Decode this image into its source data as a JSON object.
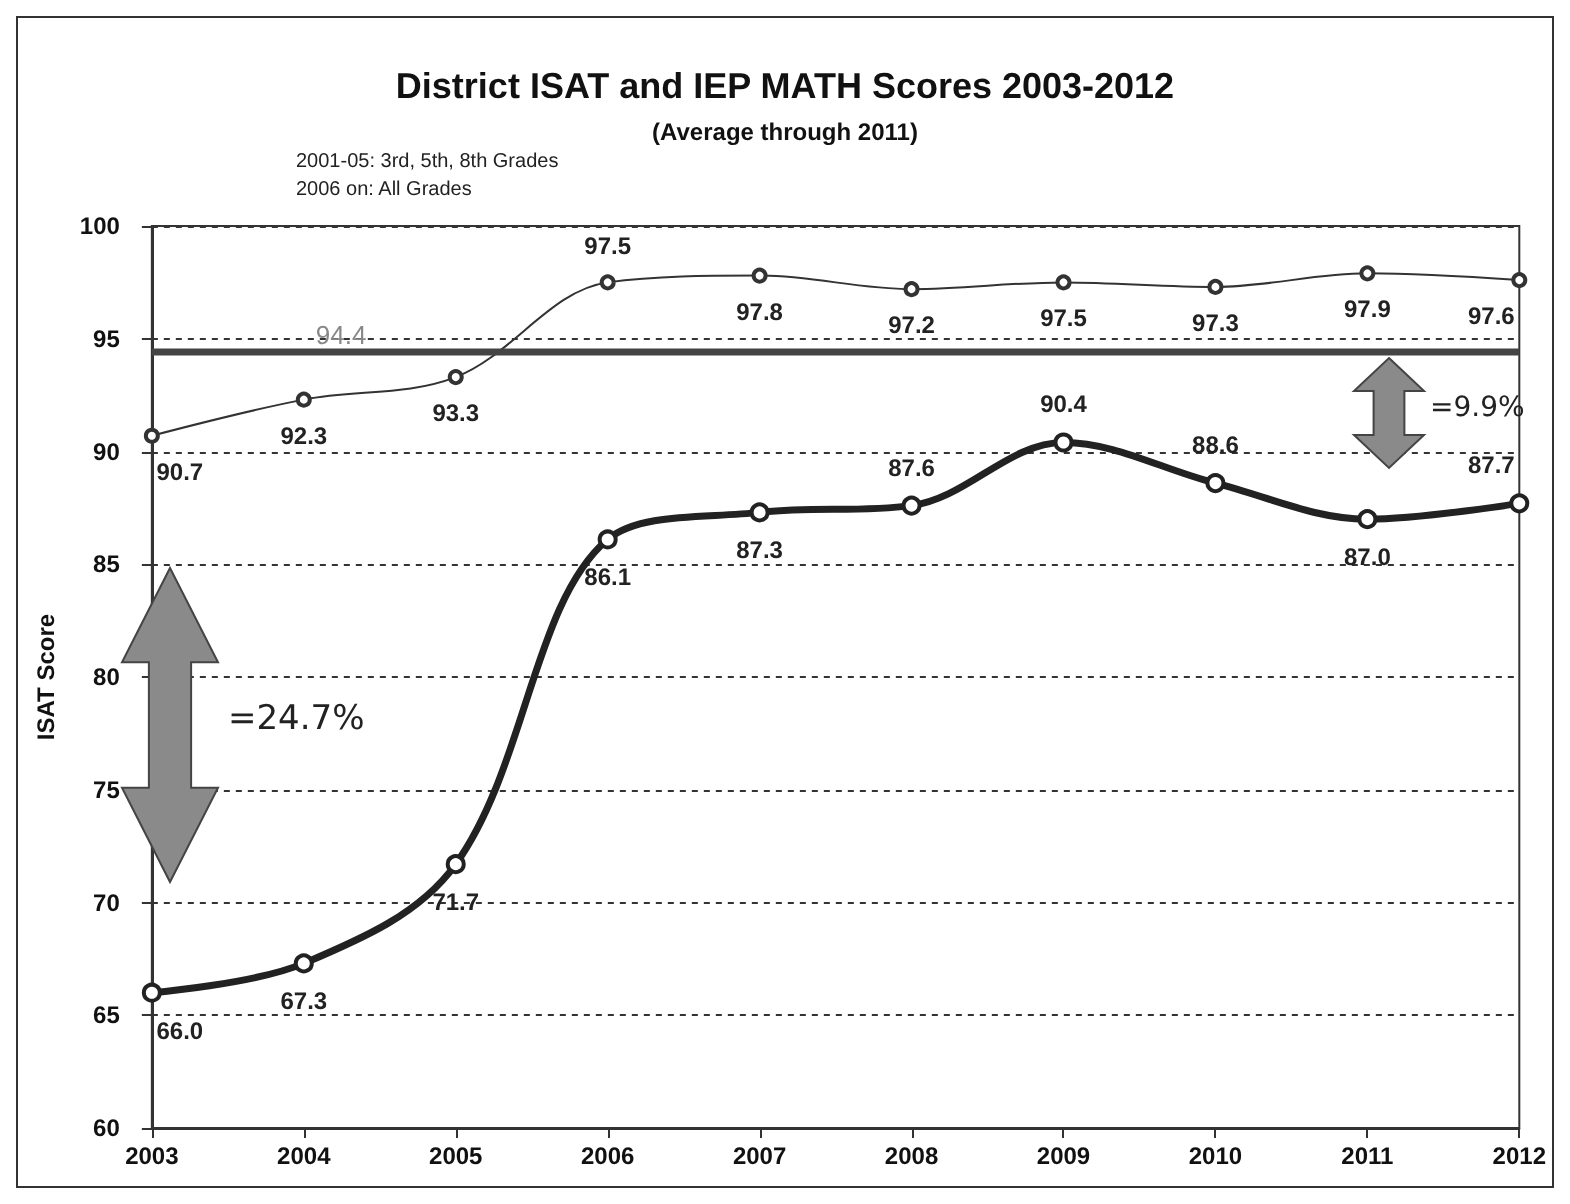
{
  "chart_data": {
    "type": "line",
    "title": "District ISAT and IEP MATH Scores 2003-2012",
    "subtitle": "(Average through 2011)",
    "ylabel": "ISAT Score",
    "annotations": [
      "2001-05: 3rd, 5th, 8th Grades",
      "2006 on: All Grades",
      "=24.7%",
      "=9.9%"
    ],
    "x": [
      2003,
      2004,
      2005,
      2006,
      2007,
      2008,
      2009,
      2010,
      2011,
      2012
    ],
    "series": [
      {
        "color": "#333333",
        "values": [
          90.7,
          92.3,
          93.3,
          97.5,
          97.8,
          97.2,
          97.5,
          97.3,
          97.9,
          97.6
        ],
        "value_labels": [
          "90.7",
          "92.3",
          "93.3",
          "97.5",
          "97.8",
          "97.2",
          "97.5",
          "97.3",
          "97.9",
          "97.6"
        ]
      },
      {
        "color": "#222222",
        "values": [
          66.0,
          67.3,
          71.7,
          86.1,
          87.3,
          87.6,
          90.4,
          88.6,
          87.0,
          87.7
        ],
        "value_labels": [
          "66.0",
          "67.3",
          "71.7",
          "86.1",
          "87.3",
          "87.6",
          "90.4",
          "88.6",
          "87.0",
          "87.7"
        ]
      }
    ],
    "xlim": [
      2003,
      2012
    ],
    "xticks": [
      2003,
      2004,
      2005,
      2006,
      2007,
      2008,
      2009,
      2010,
      2011,
      2012
    ],
    "ylim": [
      60,
      100
    ],
    "yticks": [
      60,
      65,
      70,
      75,
      80,
      85,
      90,
      95,
      100
    ],
    "ref_lines": [
      {
        "axis": "y",
        "value": 94.4,
        "label": "94.4",
        "color": "#444444"
      }
    ],
    "data_labels": true,
    "grid": "y",
    "marker": "circle",
    "line_style": "solid"
  }
}
